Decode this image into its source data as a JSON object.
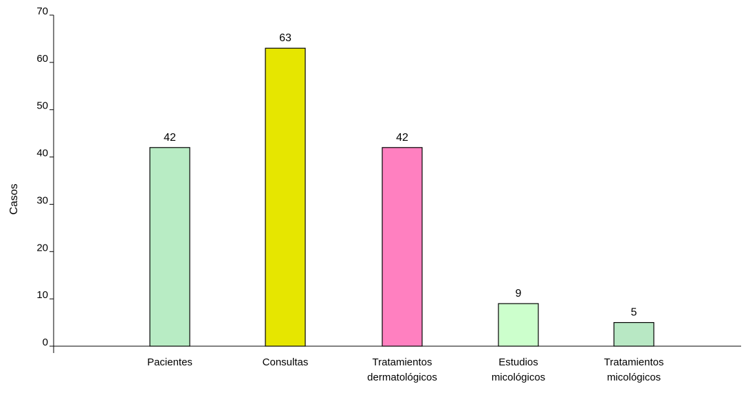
{
  "chart_data": {
    "type": "bar",
    "title": "",
    "xlabel": "",
    "ylabel": "Casos",
    "ylim": [
      0,
      70
    ],
    "yticks": [
      0,
      10,
      20,
      30,
      40,
      50,
      60,
      70
    ],
    "grid": false,
    "legend": "none",
    "categories": [
      [
        "Pacientes"
      ],
      [
        "Consultas"
      ],
      [
        "Tratamientos",
        "dermatológicos"
      ],
      [
        "Estudios",
        "micológicos"
      ],
      [
        "Tratamientos",
        "micológicos"
      ]
    ],
    "values": [
      42,
      63,
      42,
      9,
      5
    ],
    "data_labels": [
      "42",
      "63",
      "42",
      "9",
      "5"
    ],
    "bar_colors": [
      "#b8ecc4",
      "#e6e600",
      "#ff80c0",
      "#ccffcc",
      "#b8e8c4"
    ],
    "axis_color": "#000000"
  }
}
